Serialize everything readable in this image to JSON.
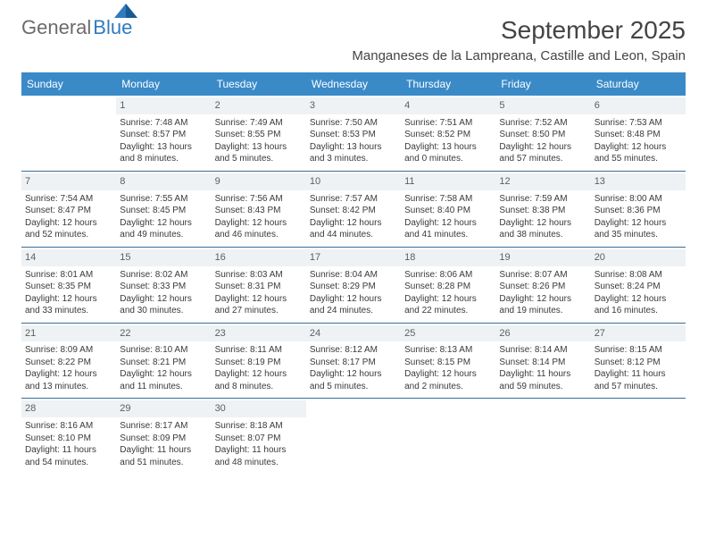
{
  "logo": {
    "general": "General",
    "blue": "Blue"
  },
  "title": "September 2025",
  "location": "Manganeses de la Lampreana, Castille and Leon, Spain",
  "colors": {
    "header_bg": "#3a8ac8",
    "header_fg": "#ffffff",
    "divider": "#3a6c94",
    "daynum_bg": "#eef2f4",
    "logo_blue": "#2f7bbf",
    "text": "#3a3a3a"
  },
  "dayHeaders": [
    "Sunday",
    "Monday",
    "Tuesday",
    "Wednesday",
    "Thursday",
    "Friday",
    "Saturday"
  ],
  "weeks": [
    [
      null,
      {
        "n": "1",
        "sr": "Sunrise: 7:48 AM",
        "ss": "Sunset: 8:57 PM",
        "dl": "Daylight: 13 hours and 8 minutes."
      },
      {
        "n": "2",
        "sr": "Sunrise: 7:49 AM",
        "ss": "Sunset: 8:55 PM",
        "dl": "Daylight: 13 hours and 5 minutes."
      },
      {
        "n": "3",
        "sr": "Sunrise: 7:50 AM",
        "ss": "Sunset: 8:53 PM",
        "dl": "Daylight: 13 hours and 3 minutes."
      },
      {
        "n": "4",
        "sr": "Sunrise: 7:51 AM",
        "ss": "Sunset: 8:52 PM",
        "dl": "Daylight: 13 hours and 0 minutes."
      },
      {
        "n": "5",
        "sr": "Sunrise: 7:52 AM",
        "ss": "Sunset: 8:50 PM",
        "dl": "Daylight: 12 hours and 57 minutes."
      },
      {
        "n": "6",
        "sr": "Sunrise: 7:53 AM",
        "ss": "Sunset: 8:48 PM",
        "dl": "Daylight: 12 hours and 55 minutes."
      }
    ],
    [
      {
        "n": "7",
        "sr": "Sunrise: 7:54 AM",
        "ss": "Sunset: 8:47 PM",
        "dl": "Daylight: 12 hours and 52 minutes."
      },
      {
        "n": "8",
        "sr": "Sunrise: 7:55 AM",
        "ss": "Sunset: 8:45 PM",
        "dl": "Daylight: 12 hours and 49 minutes."
      },
      {
        "n": "9",
        "sr": "Sunrise: 7:56 AM",
        "ss": "Sunset: 8:43 PM",
        "dl": "Daylight: 12 hours and 46 minutes."
      },
      {
        "n": "10",
        "sr": "Sunrise: 7:57 AM",
        "ss": "Sunset: 8:42 PM",
        "dl": "Daylight: 12 hours and 44 minutes."
      },
      {
        "n": "11",
        "sr": "Sunrise: 7:58 AM",
        "ss": "Sunset: 8:40 PM",
        "dl": "Daylight: 12 hours and 41 minutes."
      },
      {
        "n": "12",
        "sr": "Sunrise: 7:59 AM",
        "ss": "Sunset: 8:38 PM",
        "dl": "Daylight: 12 hours and 38 minutes."
      },
      {
        "n": "13",
        "sr": "Sunrise: 8:00 AM",
        "ss": "Sunset: 8:36 PM",
        "dl": "Daylight: 12 hours and 35 minutes."
      }
    ],
    [
      {
        "n": "14",
        "sr": "Sunrise: 8:01 AM",
        "ss": "Sunset: 8:35 PM",
        "dl": "Daylight: 12 hours and 33 minutes."
      },
      {
        "n": "15",
        "sr": "Sunrise: 8:02 AM",
        "ss": "Sunset: 8:33 PM",
        "dl": "Daylight: 12 hours and 30 minutes."
      },
      {
        "n": "16",
        "sr": "Sunrise: 8:03 AM",
        "ss": "Sunset: 8:31 PM",
        "dl": "Daylight: 12 hours and 27 minutes."
      },
      {
        "n": "17",
        "sr": "Sunrise: 8:04 AM",
        "ss": "Sunset: 8:29 PM",
        "dl": "Daylight: 12 hours and 24 minutes."
      },
      {
        "n": "18",
        "sr": "Sunrise: 8:06 AM",
        "ss": "Sunset: 8:28 PM",
        "dl": "Daylight: 12 hours and 22 minutes."
      },
      {
        "n": "19",
        "sr": "Sunrise: 8:07 AM",
        "ss": "Sunset: 8:26 PM",
        "dl": "Daylight: 12 hours and 19 minutes."
      },
      {
        "n": "20",
        "sr": "Sunrise: 8:08 AM",
        "ss": "Sunset: 8:24 PM",
        "dl": "Daylight: 12 hours and 16 minutes."
      }
    ],
    [
      {
        "n": "21",
        "sr": "Sunrise: 8:09 AM",
        "ss": "Sunset: 8:22 PM",
        "dl": "Daylight: 12 hours and 13 minutes."
      },
      {
        "n": "22",
        "sr": "Sunrise: 8:10 AM",
        "ss": "Sunset: 8:21 PM",
        "dl": "Daylight: 12 hours and 11 minutes."
      },
      {
        "n": "23",
        "sr": "Sunrise: 8:11 AM",
        "ss": "Sunset: 8:19 PM",
        "dl": "Daylight: 12 hours and 8 minutes."
      },
      {
        "n": "24",
        "sr": "Sunrise: 8:12 AM",
        "ss": "Sunset: 8:17 PM",
        "dl": "Daylight: 12 hours and 5 minutes."
      },
      {
        "n": "25",
        "sr": "Sunrise: 8:13 AM",
        "ss": "Sunset: 8:15 PM",
        "dl": "Daylight: 12 hours and 2 minutes."
      },
      {
        "n": "26",
        "sr": "Sunrise: 8:14 AM",
        "ss": "Sunset: 8:14 PM",
        "dl": "Daylight: 11 hours and 59 minutes."
      },
      {
        "n": "27",
        "sr": "Sunrise: 8:15 AM",
        "ss": "Sunset: 8:12 PM",
        "dl": "Daylight: 11 hours and 57 minutes."
      }
    ],
    [
      {
        "n": "28",
        "sr": "Sunrise: 8:16 AM",
        "ss": "Sunset: 8:10 PM",
        "dl": "Daylight: 11 hours and 54 minutes."
      },
      {
        "n": "29",
        "sr": "Sunrise: 8:17 AM",
        "ss": "Sunset: 8:09 PM",
        "dl": "Daylight: 11 hours and 51 minutes."
      },
      {
        "n": "30",
        "sr": "Sunrise: 8:18 AM",
        "ss": "Sunset: 8:07 PM",
        "dl": "Daylight: 11 hours and 48 minutes."
      },
      null,
      null,
      null,
      null
    ]
  ]
}
